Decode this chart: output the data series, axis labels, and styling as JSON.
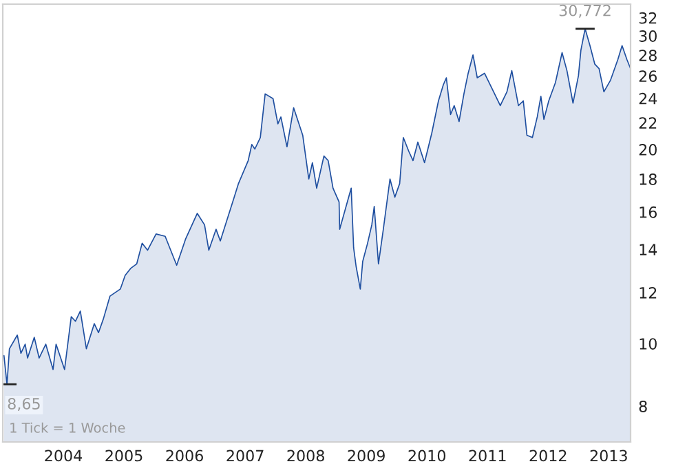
{
  "chart_data": {
    "type": "area",
    "color": "#1f4fa0",
    "log": "y",
    "grid": false,
    "legend": false,
    "x": [
      2003.02,
      2003.07,
      2003.11,
      2003.24,
      2003.3,
      2003.37,
      2003.41,
      2003.52,
      2003.6,
      2003.71,
      2003.83,
      2003.88,
      2004.02,
      2004.13,
      2004.2,
      2004.28,
      2004.38,
      2004.51,
      2004.58,
      2004.66,
      2004.77,
      2004.94,
      2005.02,
      2005.11,
      2005.21,
      2005.3,
      2005.39,
      2005.53,
      2005.68,
      2005.87,
      2006.02,
      2006.21,
      2006.33,
      2006.4,
      2006.52,
      2006.59,
      2006.82,
      2006.89,
      2007.05,
      2007.11,
      2007.16,
      2007.25,
      2007.33,
      2007.46,
      2007.54,
      2007.59,
      2007.69,
      2007.8,
      2007.95,
      2008.05,
      2008.11,
      2008.18,
      2008.3,
      2008.37,
      2008.45,
      2008.55,
      2008.56,
      2008.75,
      2008.79,
      2008.83,
      2008.9,
      2008.94,
      2009.02,
      2009.09,
      2009.13,
      2009.2,
      2009.28,
      2009.39,
      2009.47,
      2009.55,
      2009.61,
      2009.7,
      2009.77,
      2009.85,
      2009.96,
      2010.08,
      2010.19,
      2010.27,
      2010.32,
      2010.39,
      2010.45,
      2010.53,
      2010.61,
      2010.68,
      2010.76,
      2010.83,
      2010.95,
      2011.1,
      2011.21,
      2011.32,
      2011.4,
      2011.51,
      2011.59,
      2011.65,
      2011.74,
      2011.82,
      2011.88,
      2011.93,
      2012.01,
      2012.12,
      2012.23,
      2012.31,
      2012.41,
      2012.5,
      2012.54,
      2012.61,
      2012.69,
      2012.77,
      2012.84,
      2012.92,
      2013.03,
      2013.15,
      2013.22,
      2013.3,
      2013.36
    ],
    "values": [
      9.58,
      8.65,
      9.82,
      10.31,
      9.66,
      9.98,
      9.5,
      10.23,
      9.5,
      9.98,
      9.12,
      9.98,
      9.12,
      11.01,
      10.83,
      11.23,
      9.82,
      10.74,
      10.4,
      10.92,
      11.85,
      12.15,
      12.76,
      13.08,
      13.29,
      14.31,
      13.96,
      14.79,
      14.67,
      13.23,
      14.55,
      15.92,
      15.28,
      13.96,
      15.04,
      14.43,
      16.87,
      17.71,
      19.22,
      20.36,
      20.03,
      20.87,
      24.39,
      23.98,
      21.92,
      22.46,
      20.19,
      23.21,
      21.04,
      18.0,
      19.08,
      17.42,
      19.54,
      19.22,
      17.42,
      16.58,
      15.04,
      17.42,
      14.08,
      13.19,
      12.15,
      13.41,
      14.31,
      15.28,
      16.32,
      13.29,
      15.04,
      18.0,
      16.87,
      17.71,
      20.87,
      19.87,
      19.22,
      20.53,
      19.08,
      21.21,
      23.79,
      25.19,
      25.83,
      22.66,
      23.39,
      22.1,
      24.39,
      26.25,
      28.03,
      25.83,
      26.25,
      24.57,
      23.39,
      24.57,
      26.5,
      23.39,
      23.79,
      21.04,
      20.87,
      22.46,
      24.18,
      22.27,
      23.79,
      25.39,
      28.26,
      26.5,
      23.6,
      26.03,
      28.49,
      30.772,
      28.97,
      27.12,
      26.69,
      24.57,
      25.62,
      27.57,
      28.97,
      27.57,
      26.69
    ],
    "xlim": [
      2003.0,
      2013.36
    ],
    "xticks": [
      2004,
      2005,
      2006,
      2007,
      2008,
      2009,
      2010,
      2011,
      2012,
      2013
    ],
    "ylim": [
      7.04,
      33.6
    ],
    "yticks": [
      8,
      10,
      12,
      14,
      16,
      18,
      20,
      22,
      24,
      26,
      28,
      30,
      32
    ],
    "annotations": [
      {
        "text": "8,65",
        "x": 2003.07,
        "y": 8.65
      },
      {
        "text": "30,772",
        "x": 2012.61,
        "y": 30.772
      },
      "1 Tick = 1 Woche"
    ]
  }
}
